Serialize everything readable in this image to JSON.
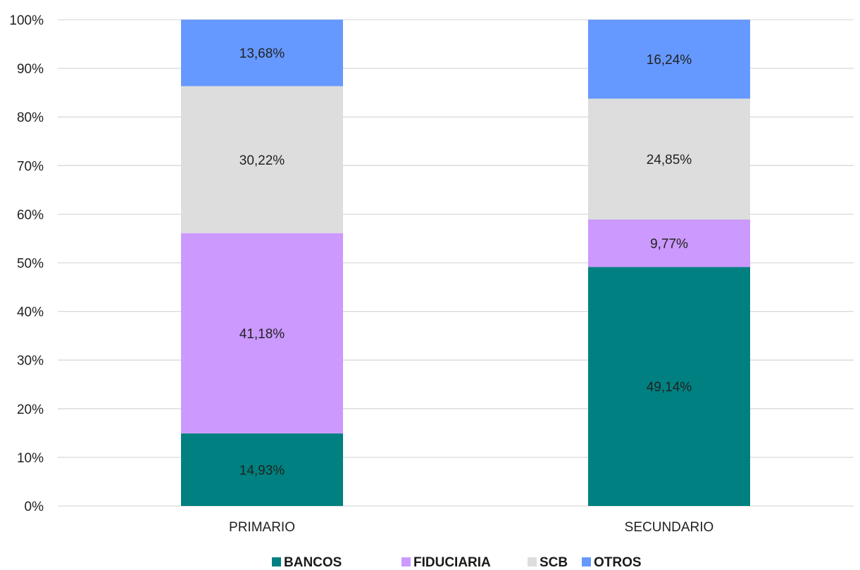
{
  "chart_data": {
    "type": "bar",
    "stacked": true,
    "categories": [
      "PRIMARIO",
      "SECUNDARIO"
    ],
    "series": [
      {
        "name": "BANCOS",
        "color": "#008080",
        "values": [
          14.93,
          49.14
        ],
        "labels": [
          "14,93%",
          "49,14%"
        ]
      },
      {
        "name": "FIDUCIARIA",
        "color": "#CC99FF",
        "values": [
          41.18,
          9.77
        ],
        "labels": [
          "41,18%",
          "9,77%"
        ]
      },
      {
        "name": "SCB",
        "color": "#DDDDDD",
        "values": [
          30.22,
          24.85
        ],
        "labels": [
          "30,22%",
          "24,85%"
        ]
      },
      {
        "name": "OTROS",
        "color": "#6699FF",
        "values": [
          13.68,
          16.24
        ],
        "labels": [
          "13,68%",
          "16,24%"
        ]
      }
    ],
    "ylim": [
      0,
      100
    ],
    "yticks": [
      "0%",
      "10%",
      "20%",
      "30%",
      "40%",
      "50%",
      "60%",
      "70%",
      "80%",
      "90%",
      "100%"
    ],
    "grid": true,
    "legend_position": "bottom",
    "gridline_color": "#D9D9D9"
  }
}
